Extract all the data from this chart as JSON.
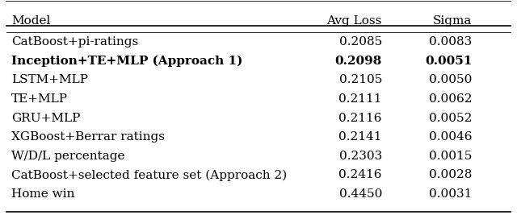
{
  "col_headers": [
    "Model",
    "Avg Loss",
    "Sigma"
  ],
  "rows": [
    [
      "CatBoost+pi-ratings",
      "0.2085",
      "0.0083"
    ],
    [
      "Inception+TE+MLP (Approach 1)",
      "0.2098",
      "0.0051"
    ],
    [
      "LSTM+MLP",
      "0.2105",
      "0.0050"
    ],
    [
      "TE+MLP",
      "0.2111",
      "0.0062"
    ],
    [
      "GRU+MLP",
      "0.2116",
      "0.0052"
    ],
    [
      "XGBoost+Berrar ratings",
      "0.2141",
      "0.0046"
    ],
    [
      "W/D/L percentage",
      "0.2303",
      "0.0015"
    ],
    [
      "CatBoost+selected feature set (Approach 2)",
      "0.2416",
      "0.0028"
    ],
    [
      "Home win",
      "0.4450",
      "0.0031"
    ]
  ],
  "bold_row": 1,
  "background_color": "#ffffff",
  "text_color": "#000000",
  "font_size": 11
}
